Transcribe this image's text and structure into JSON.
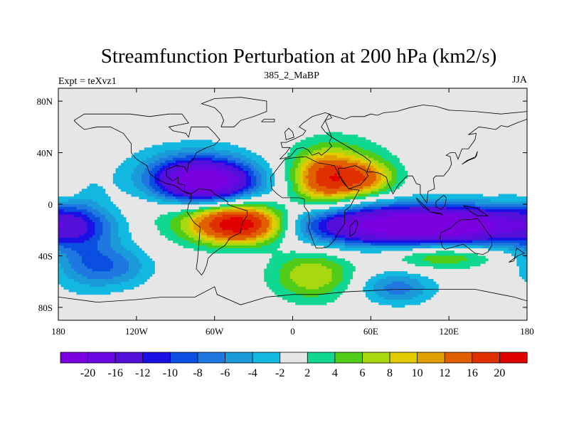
{
  "chart_data": {
    "type": "heatmap",
    "title": "Streamfunction Perturbation at 200 hPa (km2/s)",
    "left_string": "Expt = teXvz1",
    "center_string": "385_2_MaBP",
    "right_string": "JJA",
    "x_range": [
      -180,
      180
    ],
    "y_range": [
      -90,
      90
    ],
    "x_ticks": [
      {
        "value": -180,
        "label": "180"
      },
      {
        "value": -120,
        "label": "120W"
      },
      {
        "value": -60,
        "label": "60W"
      },
      {
        "value": 0,
        "label": "0"
      },
      {
        "value": 60,
        "label": "60E"
      },
      {
        "value": 120,
        "label": "120E"
      },
      {
        "value": 180,
        "label": "180"
      }
    ],
    "y_ticks": [
      {
        "value": 80,
        "label": "80N"
      },
      {
        "value": 40,
        "label": "40N"
      },
      {
        "value": 0,
        "label": "0"
      },
      {
        "value": -40,
        "label": "40S"
      },
      {
        "value": -80,
        "label": "80S"
      }
    ],
    "levels": [
      -20,
      -16,
      -12,
      -10,
      -8,
      -6,
      -4,
      -2,
      2,
      4,
      6,
      8,
      10,
      12,
      16,
      20
    ],
    "level_labels": [
      "-20",
      "-16",
      "-12",
      "-10",
      "-8",
      "-6",
      "-4",
      "-2",
      "2",
      "4",
      "6",
      "8",
      "10",
      "12",
      "16",
      "20"
    ],
    "colors": [
      "#7a00e0",
      "#6a06e0",
      "#5410da",
      "#1a10e6",
      "#0a4fe0",
      "#1e78e0",
      "#1a9ad8",
      "#12b8e0",
      "#e6e6e6",
      "#10d890",
      "#50cc18",
      "#a8d810",
      "#e0cc00",
      "#e0a000",
      "#e06000",
      "#e03000",
      "#e00000"
    ],
    "field_features": [
      {
        "lon": -67,
        "lat": 17,
        "slon": 26,
        "slat": 11,
        "amp": -21
      },
      {
        "lon": -76,
        "lat": 26,
        "slon": 34,
        "slat": 15,
        "amp": -6
      },
      {
        "lon": -40,
        "lat": -16,
        "slon": 24,
        "slat": 10,
        "amp": 22
      },
      {
        "lon": -60,
        "lat": -14,
        "slon": 50,
        "slat": 14,
        "amp": 6
      },
      {
        "lon": 25,
        "lat": 19,
        "slon": 16,
        "slat": 13,
        "amp": 14
      },
      {
        "lon": 55,
        "lat": 20,
        "slon": 16,
        "slat": 9,
        "amp": 11
      },
      {
        "lon": 35,
        "lat": 32,
        "slon": 28,
        "slat": 16,
        "amp": 5
      },
      {
        "lon": 105,
        "lat": -16,
        "slon": 60,
        "slat": 10,
        "amp": -22
      },
      {
        "lon": 70,
        "lat": -18,
        "slon": 100,
        "slat": 13,
        "amp": -6
      },
      {
        "lon": 15,
        "lat": -55,
        "slon": 22,
        "slat": 14,
        "amp": 8
      },
      {
        "lon": 115,
        "lat": -40,
        "slon": 30,
        "slat": 7,
        "amp": 7
      },
      {
        "lon": 80,
        "lat": -65,
        "slon": 20,
        "slat": 9,
        "amp": -7
      },
      {
        "lon": -140,
        "lat": -48,
        "slon": 22,
        "slat": 12,
        "amp": -7
      },
      {
        "lon": -165,
        "lat": -22,
        "slon": 18,
        "slat": 28,
        "amp": -5
      },
      {
        "lon": -175,
        "lat": 14,
        "slon": 8,
        "slat": 7,
        "amp": 4
      }
    ],
    "coastlines": [
      [
        [
          -10,
          35
        ],
        [
          -5,
          40
        ],
        [
          -2,
          44
        ],
        [
          -8,
          44
        ],
        [
          -9,
          48
        ],
        [
          -5,
          48
        ],
        [
          2,
          51
        ],
        [
          8,
          54
        ],
        [
          10,
          57
        ],
        [
          5,
          60
        ],
        [
          8,
          63
        ],
        [
          15,
          68
        ],
        [
          25,
          71
        ],
        [
          28,
          70
        ],
        [
          30,
          67
        ],
        [
          25,
          65
        ],
        [
          22,
          60
        ],
        [
          25,
          56
        ],
        [
          30,
          52
        ],
        [
          28,
          48
        ],
        [
          30,
          45
        ],
        [
          26,
          41
        ],
        [
          22,
          38
        ],
        [
          20,
          40
        ],
        [
          15,
          38
        ],
        [
          12,
          42
        ],
        [
          8,
          44
        ],
        [
          3,
          43
        ],
        [
          -2,
          37
        ],
        [
          -10,
          35
        ]
      ],
      [
        [
          -17,
          21
        ],
        [
          -16,
          12
        ],
        [
          -12,
          8
        ],
        [
          -8,
          5
        ],
        [
          -2,
          5
        ],
        [
          5,
          5
        ],
        [
          9,
          4
        ],
        [
          9,
          -2
        ],
        [
          12,
          -6
        ],
        [
          13,
          -13
        ],
        [
          12,
          -18
        ],
        [
          15,
          -27
        ],
        [
          18,
          -34
        ],
        [
          22,
          -34
        ],
        [
          27,
          -33
        ],
        [
          32,
          -28
        ],
        [
          35,
          -22
        ],
        [
          40,
          -15
        ],
        [
          40,
          -5
        ],
        [
          44,
          -2
        ],
        [
          51,
          11
        ],
        [
          43,
          12
        ],
        [
          38,
          18
        ],
        [
          32,
          30
        ],
        [
          20,
          32
        ],
        [
          10,
          37
        ],
        [
          0,
          36
        ],
        [
          -6,
          35
        ],
        [
          -10,
          30
        ],
        [
          -17,
          21
        ]
      ],
      [
        [
          43,
          12
        ],
        [
          52,
          15
        ],
        [
          58,
          22
        ],
        [
          56,
          26
        ],
        [
          50,
          29
        ],
        [
          48,
          30
        ],
        [
          40,
          28
        ],
        [
          35,
          28
        ],
        [
          36,
          22
        ],
        [
          43,
          12
        ]
      ],
      [
        [
          57,
          25
        ],
        [
          62,
          25
        ],
        [
          67,
          24
        ],
        [
          72,
          21
        ],
        [
          73,
          17
        ],
        [
          77,
          8
        ],
        [
          80,
          13
        ],
        [
          82,
          16
        ],
        [
          88,
          22
        ],
        [
          92,
          22
        ],
        [
          95,
          16
        ],
        [
          98,
          15
        ],
        [
          98,
          8
        ],
        [
          103,
          1
        ],
        [
          104,
          10
        ],
        [
          109,
          12
        ],
        [
          108,
          20
        ],
        [
          110,
          22
        ],
        [
          116,
          22
        ],
        [
          120,
          27
        ],
        [
          122,
          31
        ],
        [
          121,
          37
        ],
        [
          118,
          38
        ],
        [
          121,
          40
        ],
        [
          125,
          40
        ],
        [
          127,
          35
        ],
        [
          130,
          43
        ],
        [
          135,
          43
        ],
        [
          140,
          50
        ],
        [
          141,
          55
        ],
        [
          135,
          54
        ],
        [
          143,
          60
        ],
        [
          150,
          59
        ],
        [
          156,
          58
        ],
        [
          160,
          61
        ],
        [
          165,
          60
        ],
        [
          172,
          63
        ],
        [
          180,
          66
        ],
        [
          180,
          72
        ],
        [
          160,
          70
        ],
        [
          140,
          72
        ],
        [
          120,
          73
        ],
        [
          110,
          76
        ],
        [
          100,
          77
        ],
        [
          90,
          75
        ],
        [
          80,
          72
        ],
        [
          70,
          71
        ],
        [
          65,
          69
        ],
        [
          60,
          70
        ],
        [
          55,
          68
        ],
        [
          45,
          68
        ],
        [
          40,
          66
        ],
        [
          30,
          69
        ],
        [
          28,
          70
        ],
        [
          25,
          65
        ],
        [
          30,
          52
        ],
        [
          45,
          43
        ],
        [
          50,
          40
        ],
        [
          55,
          37
        ],
        [
          60,
          33
        ],
        [
          57,
          25
        ]
      ],
      [
        [
          -168,
          65
        ],
        [
          -160,
          70
        ],
        [
          -140,
          70
        ],
        [
          -125,
          70
        ],
        [
          -110,
          68
        ],
        [
          -95,
          70
        ],
        [
          -85,
          70
        ],
        [
          -80,
          63
        ],
        [
          -95,
          60
        ],
        [
          -92,
          57
        ],
        [
          -82,
          55
        ],
        [
          -80,
          52
        ],
        [
          -78,
          60
        ],
        [
          -70,
          60
        ],
        [
          -65,
          60
        ],
        [
          -60,
          55
        ],
        [
          -56,
          50
        ],
        [
          -60,
          46
        ],
        [
          -66,
          44
        ],
        [
          -70,
          42
        ],
        [
          -74,
          40
        ],
        [
          -76,
          35
        ],
        [
          -80,
          32
        ],
        [
          -81,
          25
        ],
        [
          -83,
          29
        ],
        [
          -89,
          30
        ],
        [
          -97,
          27
        ],
        [
          -97,
          22
        ],
        [
          -92,
          18
        ],
        [
          -88,
          21
        ],
        [
          -88,
          16
        ],
        [
          -83,
          15
        ],
        [
          -83,
          10
        ],
        [
          -78,
          8
        ],
        [
          -80,
          8
        ],
        [
          -84,
          10
        ],
        [
          -88,
          13
        ],
        [
          -92,
          15
        ],
        [
          -97,
          16
        ],
        [
          -105,
          20
        ],
        [
          -110,
          24
        ],
        [
          -112,
          30
        ],
        [
          -117,
          33
        ],
        [
          -120,
          35
        ],
        [
          -124,
          40
        ],
        [
          -124,
          47
        ],
        [
          -130,
          55
        ],
        [
          -140,
          60
        ],
        [
          -150,
          60
        ],
        [
          -160,
          58
        ],
        [
          -165,
          62
        ],
        [
          -168,
          65
        ]
      ],
      [
        [
          -78,
          8
        ],
        [
          -72,
          12
        ],
        [
          -63,
          11
        ],
        [
          -60,
          8
        ],
        [
          -50,
          2
        ],
        [
          -50,
          0
        ],
        [
          -45,
          -2
        ],
        [
          -35,
          -5
        ],
        [
          -35,
          -9
        ],
        [
          -39,
          -15
        ],
        [
          -40,
          -22
        ],
        [
          -48,
          -26
        ],
        [
          -52,
          -32
        ],
        [
          -57,
          -35
        ],
        [
          -62,
          -39
        ],
        [
          -65,
          -42
        ],
        [
          -66,
          -47
        ],
        [
          -68,
          -52
        ],
        [
          -70,
          -55
        ],
        [
          -74,
          -50
        ],
        [
          -73,
          -42
        ],
        [
          -72,
          -30
        ],
        [
          -71,
          -18
        ],
        [
          -76,
          -14
        ],
        [
          -81,
          -6
        ],
        [
          -80,
          0
        ],
        [
          -78,
          3
        ],
        [
          -78,
          8
        ]
      ],
      [
        [
          114,
          -22
        ],
        [
          122,
          -18
        ],
        [
          126,
          -14
        ],
        [
          130,
          -12
        ],
        [
          137,
          -12
        ],
        [
          142,
          -11
        ],
        [
          145,
          -15
        ],
        [
          149,
          -21
        ],
        [
          153,
          -26
        ],
        [
          153,
          -32
        ],
        [
          150,
          -37
        ],
        [
          146,
          -39
        ],
        [
          140,
          -38
        ],
        [
          135,
          -34
        ],
        [
          131,
          -31
        ],
        [
          124,
          -33
        ],
        [
          117,
          -35
        ],
        [
          115,
          -33
        ],
        [
          113,
          -26
        ],
        [
          114,
          -22
        ]
      ],
      [
        [
          -55,
          60
        ],
        [
          -45,
          60
        ],
        [
          -40,
          65
        ],
        [
          -30,
          68
        ],
        [
          -20,
          72
        ],
        [
          -20,
          80
        ],
        [
          -40,
          83
        ],
        [
          -60,
          82
        ],
        [
          -70,
          78
        ],
        [
          -60,
          75
        ],
        [
          -55,
          70
        ],
        [
          -53,
          65
        ],
        [
          -55,
          60
        ]
      ],
      [
        [
          -180,
          -72
        ],
        [
          -150,
          -76
        ],
        [
          -120,
          -74
        ],
        [
          -100,
          -72
        ],
        [
          -75,
          -72
        ],
        [
          -60,
          -64
        ],
        [
          -58,
          -70
        ],
        [
          -40,
          -78
        ],
        [
          -20,
          -72
        ],
        [
          0,
          -70
        ],
        [
          20,
          -70
        ],
        [
          40,
          -68
        ],
        [
          60,
          -67
        ],
        [
          80,
          -66
        ],
        [
          100,
          -66
        ],
        [
          120,
          -66
        ],
        [
          140,
          -66
        ],
        [
          160,
          -70
        ],
        [
          170,
          -72
        ],
        [
          180,
          -75
        ]
      ],
      [
        [
          95,
          5
        ],
        [
          100,
          0
        ],
        [
          105,
          -5
        ],
        [
          100,
          -2
        ],
        [
          96,
          3
        ],
        [
          95,
          5
        ]
      ],
      [
        [
          105,
          -6
        ],
        [
          115,
          -8
        ],
        [
          114,
          -7
        ],
        [
          105,
          -6
        ]
      ],
      [
        [
          110,
          2
        ],
        [
          116,
          7
        ],
        [
          118,
          5
        ],
        [
          117,
          -1
        ],
        [
          114,
          -4
        ],
        [
          110,
          -2
        ],
        [
          110,
          2
        ]
      ],
      [
        [
          131,
          -1
        ],
        [
          141,
          -3
        ],
        [
          150,
          -9
        ],
        [
          142,
          -9
        ],
        [
          137,
          -6
        ],
        [
          131,
          -1
        ]
      ],
      [
        [
          130,
          31
        ],
        [
          134,
          34
        ],
        [
          141,
          37
        ],
        [
          142,
          41
        ],
        [
          140,
          36
        ],
        [
          135,
          34
        ],
        [
          130,
          31
        ]
      ],
      [
        [
          166,
          -45
        ],
        [
          173,
          -40
        ],
        [
          178,
          -38
        ],
        [
          172,
          -34
        ],
        [
          170,
          -44
        ],
        [
          166,
          -45
        ]
      ],
      [
        [
          -5,
          50
        ],
        [
          1,
          52
        ],
        [
          0,
          56
        ],
        [
          -3,
          59
        ],
        [
          -6,
          56
        ],
        [
          -5,
          50
        ]
      ],
      [
        [
          44,
          -25
        ],
        [
          48,
          -22
        ],
        [
          50,
          -15
        ],
        [
          49,
          -12
        ],
        [
          44,
          -17
        ],
        [
          44,
          -25
        ]
      ],
      [
        [
          -24,
          64
        ],
        [
          -14,
          64
        ],
        [
          -14,
          66
        ],
        [
          -22,
          66
        ],
        [
          -24,
          64
        ]
      ]
    ]
  }
}
